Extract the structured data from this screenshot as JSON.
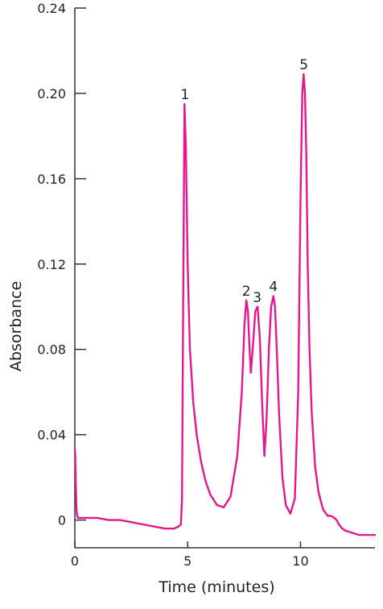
{
  "chart_data": {
    "type": "line",
    "title": "",
    "xlabel": "Time (minutes)",
    "ylabel": "Absorbance",
    "xlim": [
      0,
      13.3
    ],
    "ylim": [
      -0.013,
      0.24
    ],
    "x_ticks": [
      {
        "value": 0,
        "label": "0"
      },
      {
        "value": 5,
        "label": "5"
      },
      {
        "value": 10,
        "label": "10"
      }
    ],
    "y_ticks": [
      {
        "value": 0,
        "label": "0"
      },
      {
        "value": 0.04,
        "label": "0.04"
      },
      {
        "value": 0.08,
        "label": "0.08"
      },
      {
        "value": 0.12,
        "label": "0.12"
      },
      {
        "value": 0.16,
        "label": "0.16"
      },
      {
        "value": 0.2,
        "label": "0.20"
      },
      {
        "value": 0.24,
        "label": "0.24"
      }
    ],
    "grid": false,
    "legend": "none",
    "line_color": "#e6168f",
    "series": [
      {
        "x": [
          0.0,
          0.02,
          0.04,
          0.07,
          0.1,
          0.15,
          0.3,
          0.6,
          1.0,
          1.5,
          2.0,
          2.5,
          3.0,
          3.5,
          4.0,
          4.4,
          4.6,
          4.7,
          4.75,
          4.8,
          4.86,
          4.92,
          5.0,
          5.1,
          5.25,
          5.4,
          5.6,
          5.8,
          6.0,
          6.3,
          6.6,
          6.9,
          7.2,
          7.4,
          7.52,
          7.6,
          7.67,
          7.73,
          7.8,
          7.88,
          8.0,
          8.1,
          8.2,
          8.3,
          8.4,
          8.5,
          8.6,
          8.7,
          8.8,
          8.87,
          8.95,
          9.05,
          9.2,
          9.35,
          9.55,
          9.75,
          9.9,
          10.0,
          10.08,
          10.14,
          10.2,
          10.26,
          10.32,
          10.4,
          10.5,
          10.65,
          10.8,
          11.0,
          11.2,
          11.35,
          11.5,
          11.6,
          11.7,
          11.85,
          12.0,
          12.3,
          12.6,
          13.0,
          13.3
        ],
        "y": [
          0.033,
          0.03,
          0.018,
          0.006,
          0.002,
          0.001,
          0.001,
          0.001,
          0.001,
          0.0,
          -0.0,
          -0.001,
          -0.002,
          -0.003,
          -0.004,
          -0.004,
          -0.003,
          -0.002,
          0.01,
          0.1,
          0.195,
          0.175,
          0.12,
          0.08,
          0.055,
          0.04,
          0.027,
          0.018,
          0.012,
          0.007,
          0.006,
          0.011,
          0.03,
          0.06,
          0.092,
          0.103,
          0.098,
          0.083,
          0.069,
          0.08,
          0.098,
          0.1,
          0.085,
          0.055,
          0.03,
          0.048,
          0.08,
          0.1,
          0.105,
          0.1,
          0.08,
          0.05,
          0.02,
          0.007,
          0.003,
          0.01,
          0.06,
          0.15,
          0.2,
          0.209,
          0.2,
          0.17,
          0.12,
          0.08,
          0.05,
          0.025,
          0.013,
          0.005,
          0.002,
          0.002,
          0.001,
          0.0,
          -0.002,
          -0.004,
          -0.005,
          -0.006,
          -0.007,
          -0.007,
          -0.007
        ]
      }
    ],
    "annotations": [
      {
        "label": "1",
        "x": 4.88,
        "y": 0.195
      },
      {
        "label": "2",
        "x": 7.6,
        "y": 0.103
      },
      {
        "label": "3",
        "x": 8.08,
        "y": 0.1
      },
      {
        "label": "4",
        "x": 8.8,
        "y": 0.105
      },
      {
        "label": "5",
        "x": 10.15,
        "y": 0.209
      }
    ]
  }
}
